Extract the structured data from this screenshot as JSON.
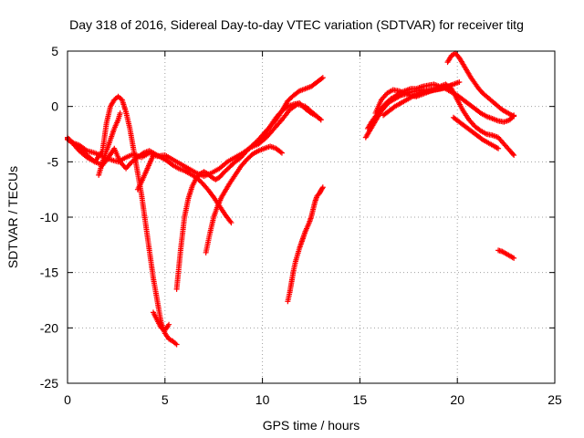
{
  "chart_data": {
    "type": "scatter",
    "title": "Day 318 of 2016, Sidereal Day-to-day VTEC variation (SDTVAR) for receiver titg",
    "xlabel": "GPS time / hours",
    "ylabel": "SDTVAR / TECUs",
    "xlim": [
      0,
      25
    ],
    "ylim": [
      -25,
      5
    ],
    "xticks": [
      0,
      5,
      10,
      15,
      20,
      25
    ],
    "yticks": [
      -25,
      -20,
      -15,
      -10,
      -5,
      0,
      5
    ],
    "grid": true,
    "marker": "+",
    "color": "#ff0000",
    "series": [
      {
        "x": [
          0.0,
          0.3,
          0.6,
          1.0,
          1.4,
          1.8,
          2.2,
          2.6,
          3.0,
          3.4,
          3.8,
          4.2,
          4.6,
          5.0,
          5.4,
          5.8,
          6.2,
          6.6,
          7.0,
          7.4,
          7.8,
          8.2,
          8.6,
          9.0,
          9.4,
          9.8,
          10.2,
          10.6,
          11.0,
          11.4,
          11.8,
          12.2,
          12.6,
          13.0
        ],
        "y": [
          -3.0,
          -3.3,
          -3.5,
          -4.0,
          -4.2,
          -4.5,
          -4.8,
          -5.0,
          -4.6,
          -4.3,
          -4.6,
          -4.2,
          -4.5,
          -4.4,
          -4.8,
          -5.2,
          -5.6,
          -6.0,
          -6.3,
          -6.0,
          -5.6,
          -5.0,
          -4.6,
          -4.2,
          -3.7,
          -3.4,
          -2.8,
          -2.0,
          -1.2,
          -0.3,
          0.2,
          0.0,
          -0.6,
          -1.2
        ]
      },
      {
        "x": [
          0.0,
          0.3,
          0.6,
          1.0,
          1.4,
          1.8,
          2.0,
          2.2,
          2.4,
          2.6,
          2.8,
          3.0,
          3.2,
          3.4,
          3.6,
          3.8,
          4.0,
          4.2,
          4.4,
          4.6,
          4.8,
          5.0,
          5.2,
          5.4,
          5.6
        ],
        "y": [
          -2.8,
          -3.4,
          -4.0,
          -4.6,
          -5.0,
          -4.0,
          -1.5,
          0.0,
          0.6,
          0.9,
          0.6,
          -0.5,
          -2.0,
          -4.0,
          -6.0,
          -8.0,
          -10.5,
          -13.0,
          -15.5,
          -17.5,
          -19.5,
          -20.5,
          -21.0,
          -21.2,
          -21.5
        ]
      },
      {
        "x": [
          0.0,
          0.3,
          0.7,
          1.0,
          1.4,
          1.8,
          2.1,
          2.4,
          2.7,
          3.0,
          3.3,
          3.6,
          3.9,
          4.2,
          4.5,
          4.8,
          5.1,
          5.4,
          5.7,
          6.0,
          6.3,
          6.6,
          6.9,
          7.2,
          7.5,
          7.8,
          8.1,
          8.4
        ],
        "y": [
          -2.9,
          -3.3,
          -3.8,
          -4.4,
          -5.0,
          -5.3,
          -4.6,
          -3.8,
          -5.0,
          -5.6,
          -5.0,
          -4.6,
          -4.2,
          -4.0,
          -4.3,
          -4.6,
          -4.9,
          -5.3,
          -5.6,
          -5.8,
          -6.1,
          -6.4,
          -6.9,
          -7.5,
          -8.2,
          -9.0,
          -9.8,
          -10.5
        ]
      },
      {
        "x": [
          1.6,
          1.8,
          2.0,
          2.2,
          2.4,
          2.6,
          2.7
        ],
        "y": [
          -6.2,
          -5.0,
          -4.0,
          -3.0,
          -2.0,
          -1.2,
          -0.6
        ]
      },
      {
        "x": [
          3.6,
          3.8,
          4.0,
          4.2,
          4.4
        ],
        "y": [
          -7.5,
          -6.8,
          -6.0,
          -5.2,
          -4.4
        ]
      },
      {
        "x": [
          4.4,
          4.6,
          4.8,
          5.0,
          5.2
        ],
        "y": [
          -18.6,
          -19.3,
          -20.0,
          -20.2,
          -19.7
        ]
      },
      {
        "x": [
          5.6,
          5.8,
          6.0,
          6.2,
          6.4,
          6.6,
          6.8,
          7.0,
          7.2,
          7.4,
          7.6,
          7.8,
          8.0,
          8.3,
          8.6,
          8.9,
          9.2,
          9.5,
          9.8,
          10.1,
          10.4,
          10.7,
          11.0,
          11.3,
          11.6,
          11.9,
          12.2,
          12.5,
          12.8,
          13.1
        ],
        "y": [
          -16.5,
          -13.0,
          -10.0,
          -8.3,
          -7.2,
          -6.5,
          -6.1,
          -5.9,
          -6.1,
          -6.4,
          -6.6,
          -6.4,
          -6.0,
          -5.5,
          -5.0,
          -4.6,
          -4.0,
          -3.5,
          -3.0,
          -2.4,
          -1.8,
          -1.2,
          -0.4,
          0.5,
          1.0,
          1.4,
          1.6,
          1.8,
          2.2,
          2.6
        ]
      },
      {
        "x": [
          7.1,
          7.3,
          7.5,
          7.7,
          7.9,
          8.1,
          8.3,
          8.6,
          8.9,
          9.2,
          9.5,
          9.8,
          10.1,
          10.4,
          10.7,
          11.0
        ],
        "y": [
          -13.2,
          -11.5,
          -10.0,
          -9.0,
          -8.2,
          -7.6,
          -7.0,
          -6.2,
          -5.4,
          -4.8,
          -4.3,
          -4.0,
          -3.8,
          -3.6,
          -3.8,
          -4.2
        ]
      },
      {
        "x": [
          9.8,
          10.1,
          10.4,
          10.7,
          11.0,
          11.3,
          11.6,
          11.9,
          12.2,
          12.5,
          12.8,
          13.0
        ],
        "y": [
          -3.2,
          -2.6,
          -1.8,
          -1.0,
          -0.4,
          0.0,
          0.2,
          0.3,
          -0.2,
          -0.6,
          -0.9,
          -1.2
        ]
      },
      {
        "x": [
          11.3,
          11.4,
          11.5,
          11.6,
          11.7,
          11.8,
          11.9,
          12.0,
          12.1,
          12.2,
          12.3,
          12.4,
          12.5,
          12.6,
          12.7,
          12.8,
          12.9,
          13.0,
          13.1
        ],
        "y": [
          -17.6,
          -16.8,
          -15.8,
          -14.8,
          -14.0,
          -13.4,
          -12.8,
          -12.3,
          -11.8,
          -11.3,
          -10.9,
          -10.5,
          -10.0,
          -9.3,
          -8.6,
          -8.1,
          -7.9,
          -7.6,
          -7.3
        ]
      },
      {
        "x": [
          15.3,
          15.5,
          15.7,
          15.9,
          16.1,
          16.3,
          16.5,
          16.7,
          16.9,
          17.1,
          17.3,
          17.6,
          17.9,
          18.2,
          18.5,
          18.8,
          19.1,
          19.4,
          19.7,
          20.0,
          20.3,
          20.6,
          20.9,
          21.2,
          21.5,
          21.8,
          22.1,
          22.4,
          22.7,
          22.9
        ],
        "y": [
          -2.8,
          -2.2,
          -1.6,
          -1.0,
          -0.4,
          0.0,
          0.4,
          0.6,
          0.8,
          1.0,
          1.1,
          1.3,
          1.4,
          1.5,
          1.4,
          1.6,
          1.8,
          2.0,
          1.6,
          0.6,
          -0.4,
          -1.2,
          -1.8,
          -2.2,
          -2.5,
          -2.6,
          -2.8,
          -3.4,
          -4.0,
          -4.4
        ]
      },
      {
        "x": [
          15.4,
          15.6,
          15.8,
          16.0,
          16.2,
          16.4,
          16.6,
          16.8,
          17.0,
          17.3,
          17.6,
          17.9,
          18.2,
          18.5,
          18.8,
          19.1,
          19.4,
          19.7,
          20.0,
          20.3,
          20.6,
          20.9,
          21.2,
          21.5,
          21.8,
          22.1,
          22.4,
          22.7,
          22.9
        ],
        "y": [
          -2.0,
          -1.4,
          -0.9,
          -0.4,
          0.0,
          0.4,
          0.7,
          0.9,
          1.2,
          1.4,
          1.6,
          1.6,
          1.8,
          1.9,
          2.0,
          1.8,
          1.6,
          1.3,
          1.0,
          0.6,
          0.2,
          -0.2,
          -0.6,
          -0.9,
          -1.1,
          -1.3,
          -1.4,
          -1.2,
          -0.8
        ]
      },
      {
        "x": [
          15.8,
          16.1,
          16.4,
          16.7,
          17.0,
          17.3,
          17.6,
          17.9,
          18.2,
          18.5,
          18.8,
          19.1,
          19.4,
          19.7
        ],
        "y": [
          -0.6,
          0.6,
          1.2,
          1.5,
          1.4,
          1.2,
          1.0,
          0.9,
          1.1,
          1.3,
          1.5,
          1.6,
          1.7,
          1.9
        ]
      },
      {
        "x": [
          16.2,
          16.5,
          16.8,
          17.1,
          17.4,
          17.7,
          18.0,
          18.3,
          18.6,
          18.9,
          19.2,
          19.5,
          19.8,
          20.1
        ],
        "y": [
          -0.8,
          -0.4,
          0.0,
          0.3,
          0.6,
          0.9,
          1.1,
          1.3,
          1.4,
          1.5,
          1.6,
          1.8,
          2.0,
          2.2
        ]
      },
      {
        "x": [
          19.5,
          19.7,
          19.9,
          20.1,
          20.3,
          20.5,
          20.7,
          20.9,
          21.1,
          21.3,
          21.5,
          21.7,
          21.9,
          22.1,
          22.3,
          22.5,
          22.7,
          22.9
        ],
        "y": [
          4.0,
          4.6,
          4.8,
          4.4,
          3.8,
          3.2,
          2.6,
          2.1,
          1.6,
          1.2,
          0.9,
          0.6,
          0.3,
          0.0,
          -0.3,
          -0.5,
          -0.7,
          -0.9
        ]
      },
      {
        "x": [
          19.8,
          20.1,
          20.4,
          20.7,
          21.0,
          21.3,
          21.6,
          21.9,
          22.1
        ],
        "y": [
          -1.0,
          -1.4,
          -1.8,
          -2.2,
          -2.6,
          -3.0,
          -3.3,
          -3.6,
          -3.8
        ]
      },
      {
        "x": [
          22.1,
          22.3,
          22.5,
          22.7,
          22.9
        ],
        "y": [
          -13.0,
          -13.1,
          -13.3,
          -13.5,
          -13.7
        ]
      }
    ]
  }
}
